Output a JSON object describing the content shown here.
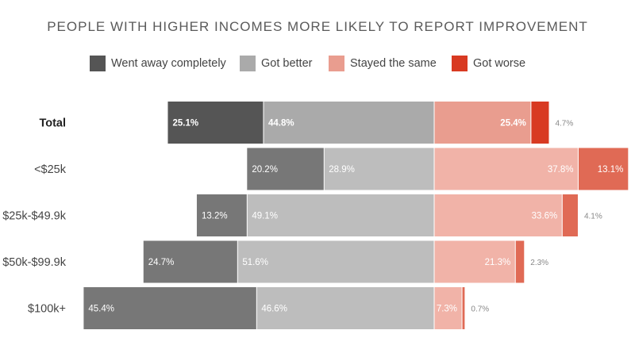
{
  "chart_data": {
    "type": "bar",
    "orientation": "horizontal",
    "stacked": true,
    "diverging": true,
    "title": "PEOPLE WITH HIGHER INCOMES MORE LIKELY TO REPORT IMPROVEMENT",
    "legend_position": "top",
    "grid": false,
    "categories": [
      "Total",
      "<$25k",
      "$25k-$49.9k",
      "$50k-$99.9k",
      "$100k+"
    ],
    "series": [
      {
        "name": "Went away completely",
        "values": [
          25.1,
          20.2,
          13.2,
          24.7,
          45.4
        ],
        "side": "left",
        "color": "#555555",
        "row_color": "#777777"
      },
      {
        "name": "Got better",
        "values": [
          44.8,
          28.9,
          49.1,
          51.6,
          46.6
        ],
        "side": "left",
        "color": "#aaaaaa",
        "row_color": "#bdbdbd"
      },
      {
        "name": "Stayed the same",
        "values": [
          25.4,
          37.8,
          33.6,
          21.3,
          7.3
        ],
        "side": "right",
        "color": "#e99d8f",
        "row_color": "#f1b3a8"
      },
      {
        "name": "Got worse",
        "values": [
          4.7,
          13.1,
          4.1,
          2.3,
          0.7
        ],
        "side": "right",
        "color": "#d83a22",
        "row_color": "#e06a55"
      }
    ],
    "value_labels": [
      [
        "25.1%",
        "20.2%",
        "13.2%",
        "24.7%",
        "45.4%"
      ],
      [
        "44.8%",
        "28.9%",
        "49.1%",
        "51.6%",
        "46.6%"
      ],
      [
        "25.4%",
        "37.8%",
        "33.6%",
        "21.3%",
        "7.3%"
      ],
      [
        "4.7%",
        "13.1%",
        "4.1%",
        "2.3%",
        "0.7%"
      ]
    ],
    "highlight_category": "Total"
  }
}
